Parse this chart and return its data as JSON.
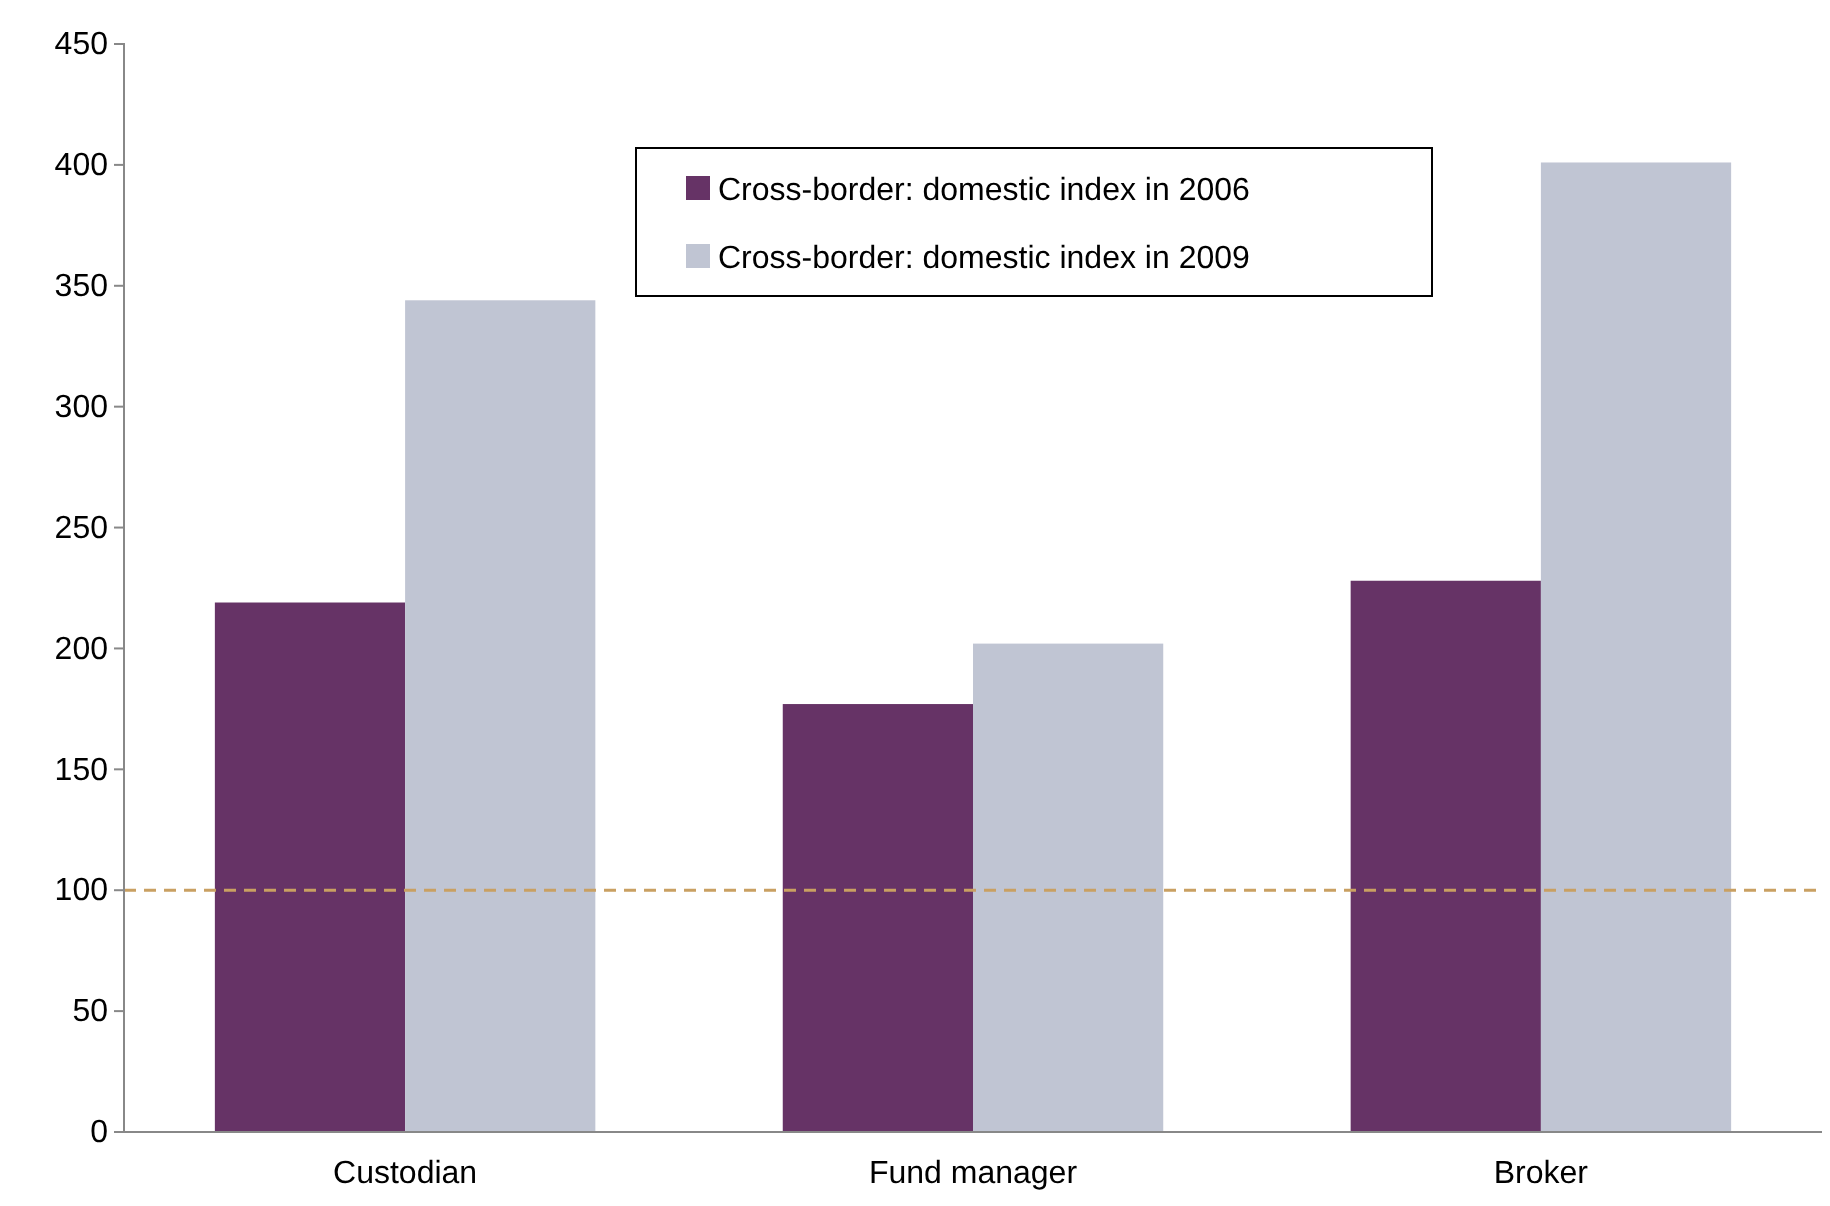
{
  "chart_data": {
    "type": "bar",
    "categories": [
      "Custodian",
      "Fund manager",
      "Broker"
    ],
    "series": [
      {
        "name": "Cross-border: domestic index in 2006",
        "color": "#663366",
        "values": [
          219,
          177,
          228
        ]
      },
      {
        "name": "Cross-border: domestic index in 2009",
        "color": "#c0c5d3",
        "values": [
          344,
          202,
          401
        ]
      }
    ],
    "ylim": [
      0,
      450
    ],
    "yticks": [
      0,
      50,
      100,
      150,
      200,
      250,
      300,
      350,
      400,
      450
    ],
    "grid": false,
    "legend": "top",
    "ref_lines": [
      {
        "axis": "y",
        "value": 100,
        "color": "#c9a062",
        "line_style": "dashed"
      }
    ]
  }
}
